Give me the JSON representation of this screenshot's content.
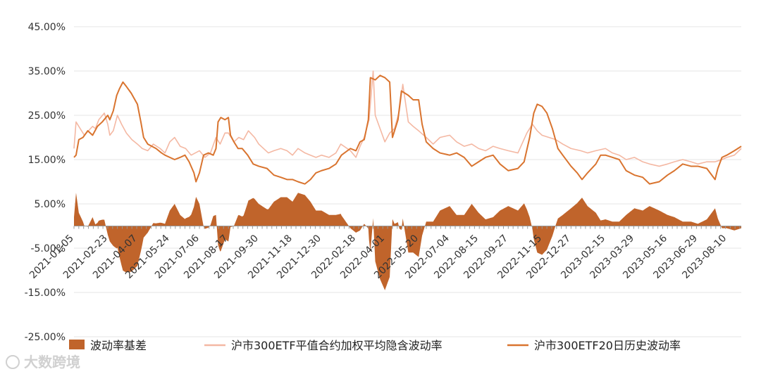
{
  "chart_data": {
    "type": "line",
    "title": "",
    "xlabel": "",
    "ylabel": "",
    "ylim": [
      -0.25,
      0.45
    ],
    "y_ticks": [
      "45.00%",
      "35.00%",
      "25.00%",
      "15.00%",
      "5.00%",
      "-5.00%",
      "-15.00%",
      "-25.00%"
    ],
    "y_tick_values": [
      0.45,
      0.35,
      0.25,
      0.15,
      0.05,
      -0.05,
      -0.15,
      -0.25
    ],
    "x_tick_labels": [
      "2021-01-05",
      "2021-02-23",
      "2021-04-07",
      "2021-05-24",
      "2021-07-06",
      "2021-08-17",
      "2021-09-30",
      "2021-11-18",
      "2021-12-30",
      "2022-02-18",
      "2022-04-01",
      "2022-05-20",
      "2022-07-04",
      "2022-08-15",
      "2022-09-27",
      "2022-11-15",
      "2022-12-27",
      "2023-02-15",
      "2023-03-29",
      "2023-05-16",
      "2023-06-29",
      "2023-08-10"
    ],
    "x_start": "2021-01-05",
    "x_end": "2023-08-31",
    "grid": true,
    "legend_position": "bottom",
    "series": [
      {
        "name": "沪市300ETF平值合约加权平均隐含波动率",
        "kind": "line",
        "color": "#f4b8a3",
        "points": [
          [
            "2021-01-05",
            0.175
          ],
          [
            "2021-01-08",
            0.235
          ],
          [
            "2021-01-14",
            0.22
          ],
          [
            "2021-01-20",
            0.205
          ],
          [
            "2021-01-26",
            0.215
          ],
          [
            "2021-02-01",
            0.225
          ],
          [
            "2021-02-05",
            0.22
          ],
          [
            "2021-02-10",
            0.24
          ],
          [
            "2021-02-18",
            0.255
          ],
          [
            "2021-02-23",
            0.23
          ],
          [
            "2021-02-26",
            0.205
          ],
          [
            "2021-03-03",
            0.215
          ],
          [
            "2021-03-09",
            0.25
          ],
          [
            "2021-03-15",
            0.23
          ],
          [
            "2021-03-22",
            0.21
          ],
          [
            "2021-03-30",
            0.195
          ],
          [
            "2021-04-07",
            0.185
          ],
          [
            "2021-04-14",
            0.175
          ],
          [
            "2021-04-22",
            0.17
          ],
          [
            "2021-04-30",
            0.185
          ],
          [
            "2021-05-10",
            0.175
          ],
          [
            "2021-05-17",
            0.165
          ],
          [
            "2021-05-24",
            0.19
          ],
          [
            "2021-05-31",
            0.2
          ],
          [
            "2021-06-08",
            0.18
          ],
          [
            "2021-06-16",
            0.175
          ],
          [
            "2021-06-24",
            0.16
          ],
          [
            "2021-07-06",
            0.17
          ],
          [
            "2021-07-14",
            0.155
          ],
          [
            "2021-07-22",
            0.165
          ],
          [
            "2021-07-30",
            0.2
          ],
          [
            "2021-08-05",
            0.185
          ],
          [
            "2021-08-12",
            0.21
          ],
          [
            "2021-08-17",
            0.21
          ],
          [
            "2021-08-25",
            0.19
          ],
          [
            "2021-09-01",
            0.2
          ],
          [
            "2021-09-08",
            0.195
          ],
          [
            "2021-09-15",
            0.215
          ],
          [
            "2021-09-24",
            0.2
          ],
          [
            "2021-09-30",
            0.185
          ],
          [
            "2021-10-14",
            0.165
          ],
          [
            "2021-10-22",
            0.17
          ],
          [
            "2021-11-01",
            0.175
          ],
          [
            "2021-11-10",
            0.17
          ],
          [
            "2021-11-18",
            0.16
          ],
          [
            "2021-11-26",
            0.175
          ],
          [
            "2021-12-06",
            0.165
          ],
          [
            "2021-12-14",
            0.16
          ],
          [
            "2021-12-22",
            0.155
          ],
          [
            "2021-12-30",
            0.16
          ],
          [
            "2022-01-10",
            0.155
          ],
          [
            "2022-01-20",
            0.165
          ],
          [
            "2022-01-27",
            0.185
          ],
          [
            "2022-02-10",
            0.17
          ],
          [
            "2022-02-18",
            0.155
          ],
          [
            "2022-02-24",
            0.18
          ],
          [
            "2022-03-02",
            0.2
          ],
          [
            "2022-03-09",
            0.24
          ],
          [
            "2022-03-15",
            0.35
          ],
          [
            "2022-03-18",
            0.25
          ],
          [
            "2022-03-25",
            0.22
          ],
          [
            "2022-04-01",
            0.19
          ],
          [
            "2022-04-08",
            0.21
          ],
          [
            "2022-04-15",
            0.22
          ],
          [
            "2022-04-22",
            0.26
          ],
          [
            "2022-04-27",
            0.32
          ],
          [
            "2022-05-05",
            0.235
          ],
          [
            "2022-05-12",
            0.225
          ],
          [
            "2022-05-20",
            0.215
          ],
          [
            "2022-05-31",
            0.2
          ],
          [
            "2022-06-10",
            0.185
          ],
          [
            "2022-06-20",
            0.2
          ],
          [
            "2022-07-04",
            0.205
          ],
          [
            "2022-07-14",
            0.19
          ],
          [
            "2022-07-25",
            0.18
          ],
          [
            "2022-08-05",
            0.185
          ],
          [
            "2022-08-15",
            0.175
          ],
          [
            "2022-08-25",
            0.17
          ],
          [
            "2022-09-05",
            0.18
          ],
          [
            "2022-09-15",
            0.175
          ],
          [
            "2022-09-27",
            0.17
          ],
          [
            "2022-10-11",
            0.165
          ],
          [
            "2022-10-24",
            0.21
          ],
          [
            "2022-11-01",
            0.23
          ],
          [
            "2022-11-08",
            0.215
          ],
          [
            "2022-11-15",
            0.205
          ],
          [
            "2022-11-25",
            0.2
          ],
          [
            "2022-12-05",
            0.195
          ],
          [
            "2022-12-15",
            0.185
          ],
          [
            "2022-12-27",
            0.175
          ],
          [
            "2023-01-10",
            0.17
          ],
          [
            "2023-01-20",
            0.165
          ],
          [
            "2023-02-01",
            0.17
          ],
          [
            "2023-02-15",
            0.175
          ],
          [
            "2023-02-25",
            0.165
          ],
          [
            "2023-03-07",
            0.16
          ],
          [
            "2023-03-17",
            0.15
          ],
          [
            "2023-03-29",
            0.155
          ],
          [
            "2023-04-10",
            0.145
          ],
          [
            "2023-04-20",
            0.14
          ],
          [
            "2023-05-04",
            0.135
          ],
          [
            "2023-05-16",
            0.14
          ],
          [
            "2023-05-26",
            0.145
          ],
          [
            "2023-06-07",
            0.15
          ],
          [
            "2023-06-19",
            0.145
          ],
          [
            "2023-06-29",
            0.14
          ],
          [
            "2023-07-12",
            0.145
          ],
          [
            "2023-07-24",
            0.145
          ],
          [
            "2023-08-03",
            0.15
          ],
          [
            "2023-08-10",
            0.155
          ],
          [
            "2023-08-21",
            0.16
          ],
          [
            "2023-08-31",
            0.175
          ]
        ]
      },
      {
        "name": "沪市300ETF20日历史波动率",
        "kind": "line",
        "color": "#d9742f",
        "points": [
          [
            "2021-01-05",
            0.155
          ],
          [
            "2021-01-08",
            0.16
          ],
          [
            "2021-01-12",
            0.195
          ],
          [
            "2021-01-18",
            0.2
          ],
          [
            "2021-01-25",
            0.215
          ],
          [
            "2021-02-01",
            0.205
          ],
          [
            "2021-02-08",
            0.225
          ],
          [
            "2021-02-15",
            0.235
          ],
          [
            "2021-02-23",
            0.25
          ],
          [
            "2021-02-26",
            0.24
          ],
          [
            "2021-03-03",
            0.26
          ],
          [
            "2021-03-08",
            0.295
          ],
          [
            "2021-03-12",
            0.31
          ],
          [
            "2021-03-17",
            0.325
          ],
          [
            "2021-03-22",
            0.315
          ],
          [
            "2021-03-29",
            0.3
          ],
          [
            "2021-04-07",
            0.275
          ],
          [
            "2021-04-12",
            0.235
          ],
          [
            "2021-04-16",
            0.2
          ],
          [
            "2021-04-22",
            0.185
          ],
          [
            "2021-05-04",
            0.175
          ],
          [
            "2021-05-12",
            0.165
          ],
          [
            "2021-05-17",
            0.16
          ],
          [
            "2021-05-24",
            0.155
          ],
          [
            "2021-05-31",
            0.15
          ],
          [
            "2021-06-08",
            0.155
          ],
          [
            "2021-06-15",
            0.16
          ],
          [
            "2021-06-21",
            0.145
          ],
          [
            "2021-06-28",
            0.12
          ],
          [
            "2021-07-01",
            0.1
          ],
          [
            "2021-07-06",
            0.12
          ],
          [
            "2021-07-12",
            0.16
          ],
          [
            "2021-07-19",
            0.165
          ],
          [
            "2021-07-26",
            0.16
          ],
          [
            "2021-07-30",
            0.175
          ],
          [
            "2021-08-02",
            0.235
          ],
          [
            "2021-08-06",
            0.245
          ],
          [
            "2021-08-12",
            0.24
          ],
          [
            "2021-08-17",
            0.245
          ],
          [
            "2021-08-20",
            0.205
          ],
          [
            "2021-08-25",
            0.19
          ],
          [
            "2021-08-31",
            0.175
          ],
          [
            "2021-09-06",
            0.175
          ],
          [
            "2021-09-14",
            0.16
          ],
          [
            "2021-09-22",
            0.14
          ],
          [
            "2021-09-30",
            0.135
          ],
          [
            "2021-10-12",
            0.13
          ],
          [
            "2021-10-22",
            0.115
          ],
          [
            "2021-11-01",
            0.11
          ],
          [
            "2021-11-10",
            0.105
          ],
          [
            "2021-11-18",
            0.105
          ],
          [
            "2021-11-26",
            0.1
          ],
          [
            "2021-12-06",
            0.095
          ],
          [
            "2021-12-14",
            0.105
          ],
          [
            "2021-12-22",
            0.12
          ],
          [
            "2021-12-30",
            0.125
          ],
          [
            "2022-01-10",
            0.13
          ],
          [
            "2022-01-20",
            0.14
          ],
          [
            "2022-01-28",
            0.16
          ],
          [
            "2022-02-10",
            0.175
          ],
          [
            "2022-02-18",
            0.17
          ],
          [
            "2022-02-24",
            0.19
          ],
          [
            "2022-03-02",
            0.195
          ],
          [
            "2022-03-08",
            0.24
          ],
          [
            "2022-03-11",
            0.335
          ],
          [
            "2022-03-18",
            0.33
          ],
          [
            "2022-03-25",
            0.34
          ],
          [
            "2022-04-01",
            0.335
          ],
          [
            "2022-04-08",
            0.325
          ],
          [
            "2022-04-12",
            0.2
          ],
          [
            "2022-04-15",
            0.215
          ],
          [
            "2022-04-20",
            0.24
          ],
          [
            "2022-04-25",
            0.305
          ],
          [
            "2022-05-05",
            0.295
          ],
          [
            "2022-05-12",
            0.285
          ],
          [
            "2022-05-20",
            0.285
          ],
          [
            "2022-05-25",
            0.23
          ],
          [
            "2022-05-31",
            0.19
          ],
          [
            "2022-06-10",
            0.175
          ],
          [
            "2022-06-20",
            0.165
          ],
          [
            "2022-07-04",
            0.16
          ],
          [
            "2022-07-14",
            0.165
          ],
          [
            "2022-07-25",
            0.155
          ],
          [
            "2022-08-05",
            0.135
          ],
          [
            "2022-08-15",
            0.145
          ],
          [
            "2022-08-25",
            0.155
          ],
          [
            "2022-09-05",
            0.16
          ],
          [
            "2022-09-15",
            0.14
          ],
          [
            "2022-09-27",
            0.125
          ],
          [
            "2022-10-11",
            0.13
          ],
          [
            "2022-10-20",
            0.145
          ],
          [
            "2022-10-28",
            0.2
          ],
          [
            "2022-11-03",
            0.255
          ],
          [
            "2022-11-08",
            0.275
          ],
          [
            "2022-11-15",
            0.27
          ],
          [
            "2022-11-22",
            0.255
          ],
          [
            "2022-11-30",
            0.22
          ],
          [
            "2022-12-08",
            0.175
          ],
          [
            "2022-12-15",
            0.16
          ],
          [
            "2022-12-27",
            0.135
          ],
          [
            "2023-01-05",
            0.12
          ],
          [
            "2023-01-12",
            0.105
          ],
          [
            "2023-01-20",
            0.12
          ],
          [
            "2023-02-01",
            0.14
          ],
          [
            "2023-02-08",
            0.16
          ],
          [
            "2023-02-15",
            0.16
          ],
          [
            "2023-02-25",
            0.155
          ],
          [
            "2023-03-07",
            0.15
          ],
          [
            "2023-03-17",
            0.125
          ],
          [
            "2023-03-29",
            0.115
          ],
          [
            "2023-04-10",
            0.11
          ],
          [
            "2023-04-20",
            0.095
          ],
          [
            "2023-05-04",
            0.1
          ],
          [
            "2023-05-16",
            0.115
          ],
          [
            "2023-05-26",
            0.125
          ],
          [
            "2023-06-07",
            0.14
          ],
          [
            "2023-06-19",
            0.135
          ],
          [
            "2023-06-29",
            0.135
          ],
          [
            "2023-07-12",
            0.13
          ],
          [
            "2023-07-24",
            0.105
          ],
          [
            "2023-07-28",
            0.13
          ],
          [
            "2023-08-03",
            0.155
          ],
          [
            "2023-08-10",
            0.16
          ],
          [
            "2023-08-21",
            0.17
          ],
          [
            "2023-08-31",
            0.18
          ]
        ]
      }
    ]
  },
  "legend": {
    "items": [
      {
        "label": "波动率基差",
        "kind": "area",
        "color": "#c0642b"
      },
      {
        "label": "沪市300ETF平值合约加权平均隐含波动率",
        "kind": "line",
        "color": "#f4b8a3"
      },
      {
        "label": "沪市300ETF20日历史波动率",
        "kind": "line",
        "color": "#d9742f"
      }
    ]
  },
  "watermark": {
    "text": "大数跨境"
  },
  "colors": {
    "grid": "#e6e6e6",
    "axis": "#999999",
    "basis": "#c0642b"
  }
}
